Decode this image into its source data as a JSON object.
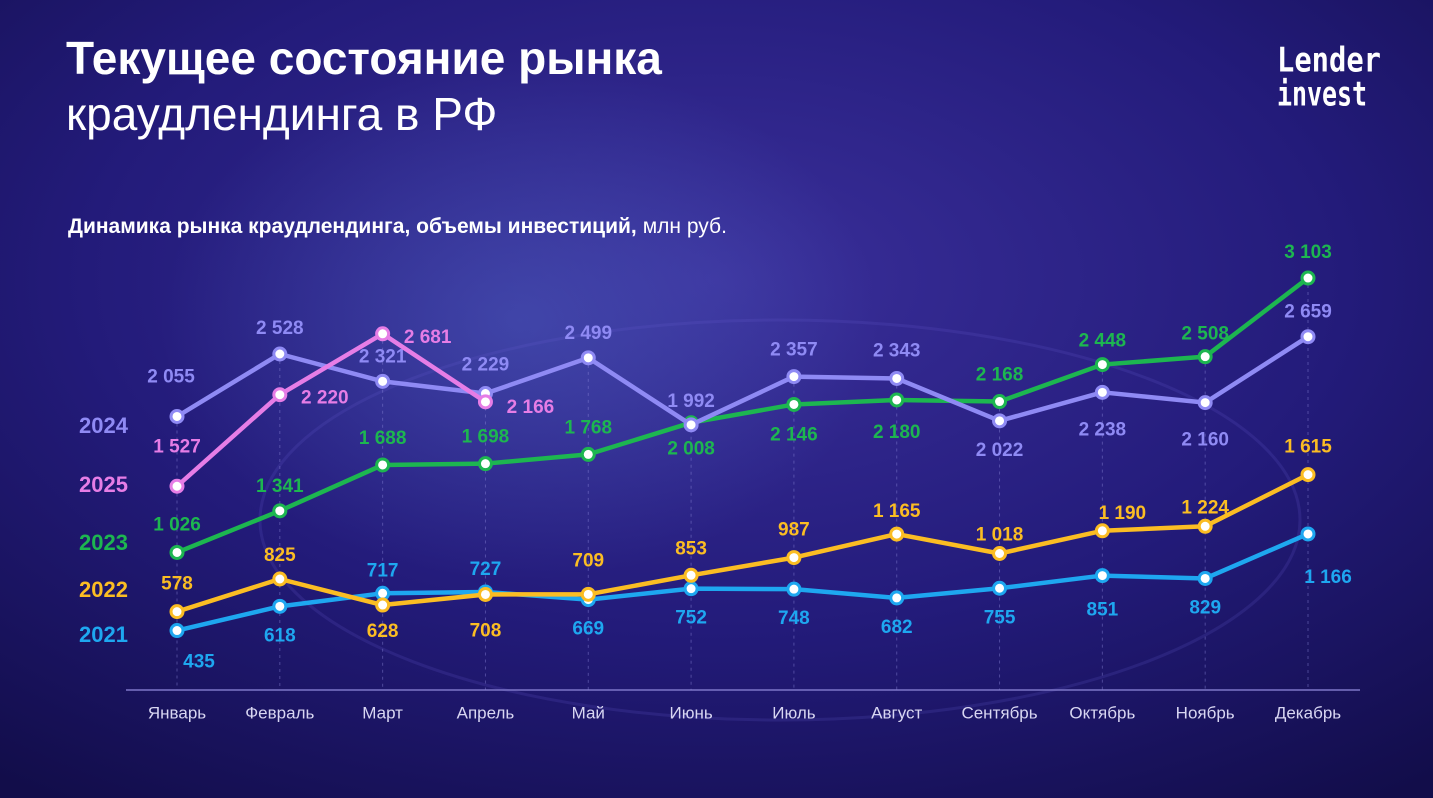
{
  "chart_data": {
    "type": "line",
    "title": "Текущее состояние рынка",
    "title_line2": "краудлендинга в РФ",
    "subtitle": "Динамика рынка краудлендинга, объемы инвестиций,",
    "unit": "млн руб.",
    "logo": [
      "Lender",
      "invest"
    ],
    "categories": [
      "Январь",
      "Февраль",
      "Март",
      "Апрель",
      "Май",
      "Июнь",
      "Июль",
      "Август",
      "Сентябрь",
      "Октябрь",
      "Ноябрь",
      "Декабрь"
    ],
    "ylim": [
      0,
      3300
    ],
    "series": [
      {
        "name": "2021",
        "color": "#1ea7f0",
        "values": [
          435,
          618,
          717,
          727,
          669,
          752,
          748,
          682,
          755,
          851,
          829,
          1166
        ],
        "value_labels": [
          "435",
          "618",
          "717",
          "727",
          "669",
          "752",
          "748",
          "682",
          "755",
          "851",
          "829",
          "1 166"
        ]
      },
      {
        "name": "2022",
        "color": "#fbbd23",
        "values": [
          578,
          825,
          628,
          708,
          709,
          853,
          987,
          1165,
          1018,
          1190,
          1224,
          1615
        ],
        "value_labels": [
          "578",
          "825",
          "628",
          "708",
          "709",
          "853",
          "987",
          "1 165",
          "1 018",
          "1 190",
          "1 224",
          "1 615"
        ]
      },
      {
        "name": "2023",
        "color": "#1db650",
        "values": [
          1026,
          1341,
          1688,
          1698,
          1768,
          2008,
          2146,
          2180,
          2168,
          2448,
          2508,
          3103
        ],
        "value_labels": [
          "1 026",
          "1 341",
          "1 688",
          "1 698",
          "1 768",
          "2 008",
          "2 146",
          "2 180",
          "2 168",
          "2 448",
          "2 508",
          "3 103"
        ]
      },
      {
        "name": "2024",
        "color": "#8f8af4",
        "values": [
          2055,
          2528,
          2321,
          2229,
          2499,
          1992,
          2357,
          2343,
          2022,
          2238,
          2160,
          2659
        ],
        "value_labels": [
          "2 055",
          "2 528",
          "2 321",
          "2 229",
          "2 499",
          "1 992",
          "2 357",
          "2 343",
          "2 022",
          "2 238",
          "2 160",
          "2 659"
        ]
      },
      {
        "name": "2025",
        "color": "#e67de6",
        "values": [
          1527,
          2220,
          2681,
          2166,
          null,
          null,
          null,
          null,
          null,
          null,
          null,
          null
        ],
        "value_labels": [
          "1 527",
          "2 220",
          "2 681",
          "2 166",
          null,
          null,
          null,
          null,
          null,
          null,
          null,
          null
        ]
      }
    ]
  }
}
